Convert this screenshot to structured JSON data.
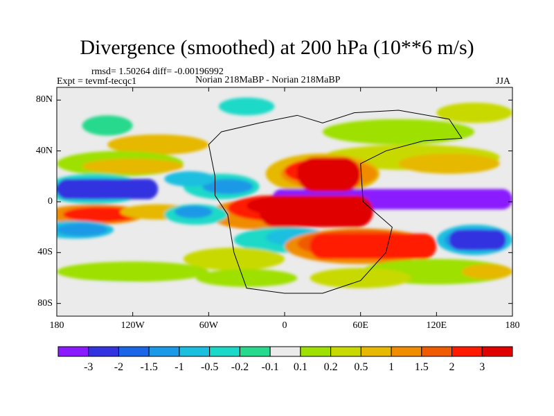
{
  "title": "Divergence (smoothed) at 200 hPa (10**6 m/s)",
  "stats": {
    "rmsd_diff": "rmsd= 1.50264  diff= -0.00196992",
    "expt": "Expt = tevmf-tecqc1",
    "case": "Norian 218MaBP - Norian 218MaBP",
    "season": "JJA"
  },
  "chart_data": {
    "type": "heatmap",
    "title": "Divergence (smoothed) at 200 hPa (10**6 m/s)",
    "xlabel": "",
    "ylabel": "",
    "xlim": [
      -180,
      180
    ],
    "ylim": [
      -90,
      90
    ],
    "x_ticks": [
      {
        "value": -180,
        "label": "180"
      },
      {
        "value": -120,
        "label": "120W"
      },
      {
        "value": -60,
        "label": "60W"
      },
      {
        "value": 0,
        "label": "0"
      },
      {
        "value": 60,
        "label": "60E"
      },
      {
        "value": 120,
        "label": "120E"
      },
      {
        "value": 180,
        "label": "180"
      }
    ],
    "y_ticks": [
      {
        "value": 80,
        "label": "80N"
      },
      {
        "value": 40,
        "label": "40N"
      },
      {
        "value": 0,
        "label": "0"
      },
      {
        "value": -40,
        "label": "40S"
      },
      {
        "value": -80,
        "label": "80S"
      }
    ],
    "colorbar": {
      "levels": [
        "-3",
        "-2",
        "-1.5",
        "-1",
        "-0.5",
        "-0.2",
        "-0.1",
        "0.1",
        "0.2",
        "0.5",
        "1",
        "1.5",
        "2",
        "3"
      ],
      "colors": [
        "#8a1aff",
        "#3333e0",
        "#1a66e6",
        "#1a99e6",
        "#1abfe0",
        "#1ad9c8",
        "#26d98c",
        "#ebebeb",
        "#9ee000",
        "#c8d900",
        "#e6b800",
        "#f08c00",
        "#f05a00",
        "#ff1a00",
        "#e00000"
      ]
    },
    "features": [
      {
        "name": "equatorial-negative-band-east",
        "lon_range": [
          -10,
          180
        ],
        "lat_range": [
          -6,
          10
        ],
        "category": "-3"
      },
      {
        "name": "equatorial-negative-band-west",
        "lon_range": [
          -180,
          -100
        ],
        "lat_range": [
          2,
          18
        ],
        "category": "-2"
      },
      {
        "name": "atlantic-positive-core",
        "lon_range": [
          -20,
          70
        ],
        "lat_range": [
          -20,
          5
        ],
        "category": "3"
      },
      {
        "name": "southern-negative-core",
        "lon_range": [
          130,
          175
        ],
        "lat_range": [
          -38,
          -22
        ],
        "category": "-2"
      },
      {
        "name": "northern-positive-africa",
        "lon_range": [
          10,
          60
        ],
        "lat_range": [
          8,
          35
        ],
        "category": "3"
      },
      {
        "name": "southern-positive-band",
        "lon_range": [
          20,
          120
        ],
        "lat_range": [
          -45,
          -25
        ],
        "category": "2"
      }
    ]
  }
}
